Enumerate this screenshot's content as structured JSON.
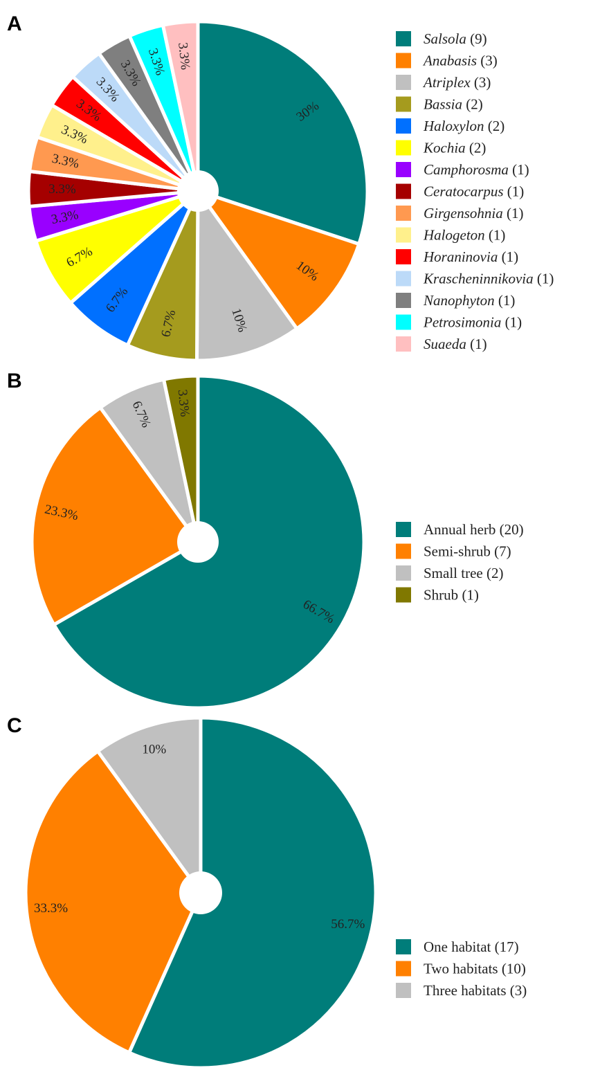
{
  "chart_data": [
    {
      "type": "pie",
      "panel": "A",
      "legend_position": "right",
      "legend_italic_names": true,
      "slices": [
        {
          "name": "Salsola",
          "count": "(9)",
          "percent": 30,
          "label": "30%",
          "color": "#007d7a"
        },
        {
          "name": "Anabasis",
          "count": "(3)",
          "percent": 10,
          "label": "10%",
          "color": "#ff8000"
        },
        {
          "name": "Atriplex",
          "count": "(3)",
          "percent": 10,
          "label": "10%",
          "color": "#c0c0c0"
        },
        {
          "name": "Bassia",
          "count": "(2)",
          "percent": 6.7,
          "label": "6.7%",
          "color": "#a59b1e"
        },
        {
          "name": "Haloxylon",
          "count": "(2)",
          "percent": 6.7,
          "label": "6.7%",
          "color": "#0070ff"
        },
        {
          "name": "Kochia",
          "count": "(2)",
          "percent": 6.7,
          "label": "6.7%",
          "color": "#ffff00"
        },
        {
          "name": "Camphorosma",
          "count": "(1)",
          "percent": 3.3,
          "label": "3.3%",
          "color": "#9900ff"
        },
        {
          "name": "Ceratocarpus",
          "count": "(1)",
          "percent": 3.3,
          "label": "3.3%",
          "color": "#a50000"
        },
        {
          "name": "Girgensohnia",
          "count": "(1)",
          "percent": 3.3,
          "label": "3.3%",
          "color": "#ff9950"
        },
        {
          "name": "Halogeton",
          "count": "(1)",
          "percent": 3.3,
          "label": "3.3%",
          "color": "#fff08c"
        },
        {
          "name": "Horaninovia",
          "count": "(1)",
          "percent": 3.3,
          "label": "3.3%",
          "color": "#ff0000"
        },
        {
          "name": "Krascheninnikovia",
          "count": "(1)",
          "percent": 3.3,
          "label": "3.3%",
          "color": "#bcdaf8"
        },
        {
          "name": "Nanophyton",
          "count": "(1)",
          "percent": 3.3,
          "label": "3.3%",
          "color": "#7f7f7f"
        },
        {
          "name": "Petrosimonia",
          "count": "(1)",
          "percent": 3.3,
          "label": "3.3%",
          "color": "#00ffff"
        },
        {
          "name": "Suaeda",
          "count": "(1)",
          "percent": 3.3,
          "label": "3.3%",
          "color": "#ffbfc0"
        }
      ]
    },
    {
      "type": "pie",
      "panel": "B",
      "legend_position": "right",
      "legend_italic_names": false,
      "slices": [
        {
          "name": "Annual herb",
          "count": "(20)",
          "percent": 66.7,
          "label": "66.7%",
          "color": "#007d7a"
        },
        {
          "name": "Semi-shrub",
          "count": "(7)",
          "percent": 23.3,
          "label": "23.3%",
          "color": "#ff8000"
        },
        {
          "name": "Small tree",
          "count": "(2)",
          "percent": 6.7,
          "label": "6.7%",
          "color": "#c0c0c0"
        },
        {
          "name": "Shrub",
          "count": "(1)",
          "percent": 3.3,
          "label": "3.3%",
          "color": "#807800"
        }
      ]
    },
    {
      "type": "pie",
      "panel": "C",
      "legend_position": "bottom-right",
      "legend_italic_names": false,
      "slices": [
        {
          "name": "One habitat",
          "count": "(17)",
          "percent": 56.7,
          "label": "56.7%",
          "color": "#007d7a"
        },
        {
          "name": "Two habitats",
          "count": "(10)",
          "percent": 33.3,
          "label": "33.3%",
          "color": "#ff8000"
        },
        {
          "name": "Three habitats",
          "count": "(3)",
          "percent": 10,
          "label": "10%",
          "color": "#c0c0c0"
        }
      ]
    }
  ]
}
